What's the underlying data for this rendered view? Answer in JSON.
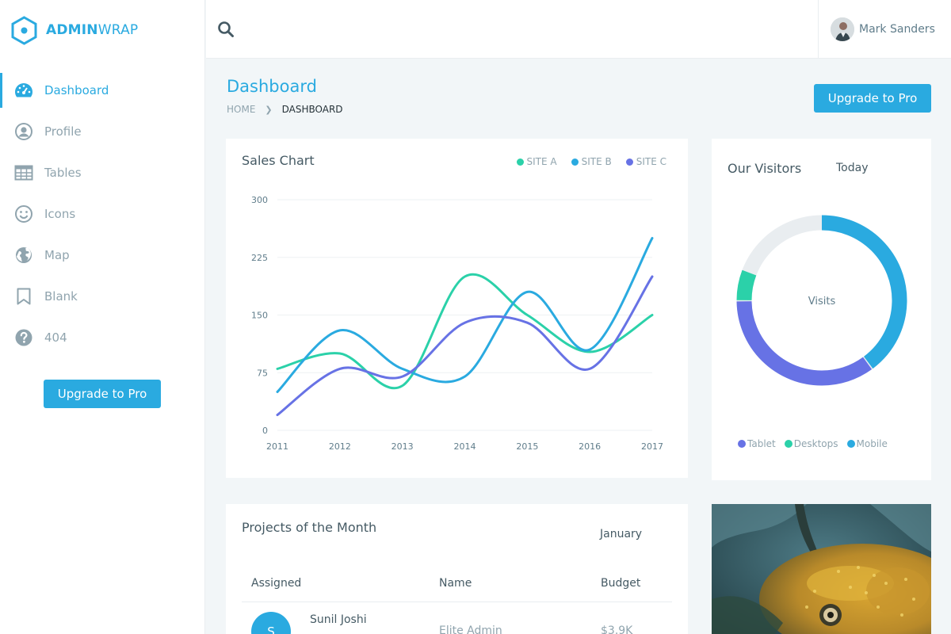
{
  "brand": {
    "bold": "ADMIN",
    "light": "WRAP",
    "accent": "#2aaae0"
  },
  "sidebar": {
    "items": [
      {
        "label": "Dashboard",
        "icon": "dashboard-icon",
        "active": true
      },
      {
        "label": "Profile",
        "icon": "user-circle-icon",
        "active": false
      },
      {
        "label": "Tables",
        "icon": "table-icon",
        "active": false
      },
      {
        "label": "Icons",
        "icon": "smile-icon",
        "active": false
      },
      {
        "label": "Map",
        "icon": "globe-icon",
        "active": false
      },
      {
        "label": "Blank",
        "icon": "bookmark-icon",
        "active": false
      },
      {
        "label": "404",
        "icon": "question-circle-icon",
        "active": false
      }
    ],
    "upgrade_label": "Upgrade to Pro"
  },
  "topbar": {
    "search_icon": "search-icon",
    "user_name": "Mark Sanders"
  },
  "page": {
    "title": "Dashboard",
    "breadcrumb": {
      "home": "HOME",
      "current": "DASHBOARD"
    },
    "upgrade_label": "Upgrade to Pro"
  },
  "sales_card": {
    "title": "Sales Chart",
    "legend": [
      {
        "label": "SITE A",
        "color": "#2bd1a9"
      },
      {
        "label": "SITE B",
        "color": "#2aaae0"
      },
      {
        "label": "SITE C",
        "color": "#6772e5"
      }
    ]
  },
  "visitors_card": {
    "title": "Our Visitors",
    "period": "Today",
    "center_label": "Visits",
    "legend": [
      {
        "label": "Tablet",
        "color": "#6772e5"
      },
      {
        "label": "Desktops",
        "color": "#2bd1a9"
      },
      {
        "label": "Mobile",
        "color": "#2aaae0"
      }
    ]
  },
  "projects_card": {
    "title": "Projects of the Month",
    "month": "January",
    "columns": [
      "Assigned",
      "Name",
      "Budget"
    ],
    "rows": [
      {
        "avatar_letter": "S",
        "assigned": "Sunil Joshi",
        "name": "Elite Admin",
        "budget": "$3.9K"
      }
    ]
  },
  "chart_data": [
    {
      "type": "line",
      "title": "Sales Chart",
      "x": [
        "2011",
        "2012",
        "2013",
        "2014",
        "2015",
        "2016",
        "2017"
      ],
      "ylim": [
        0,
        300
      ],
      "yticks": [
        0,
        75,
        150,
        225,
        300
      ],
      "grid": true,
      "legend_position": "top-right",
      "series": [
        {
          "name": "SITE A",
          "color": "#2bd1a9",
          "values": [
            80,
            100,
            58,
            200,
            150,
            102,
            150
          ]
        },
        {
          "name": "SITE B",
          "color": "#2aaae0",
          "values": [
            50,
            130,
            80,
            70,
            180,
            105,
            250
          ]
        },
        {
          "name": "SITE C",
          "color": "#6772e5",
          "values": [
            20,
            80,
            70,
            140,
            140,
            80,
            200
          ]
        }
      ]
    },
    {
      "type": "pie",
      "title": "Our Visitors",
      "center_label": "Visits",
      "categories": [
        "Mobile",
        "Tablet",
        "Desktops"
      ],
      "values": [
        40,
        35,
        6
      ],
      "remainder_color": "#e9edf0",
      "colors": [
        "#2aaae0",
        "#6772e5",
        "#2bd1a9"
      ]
    }
  ]
}
